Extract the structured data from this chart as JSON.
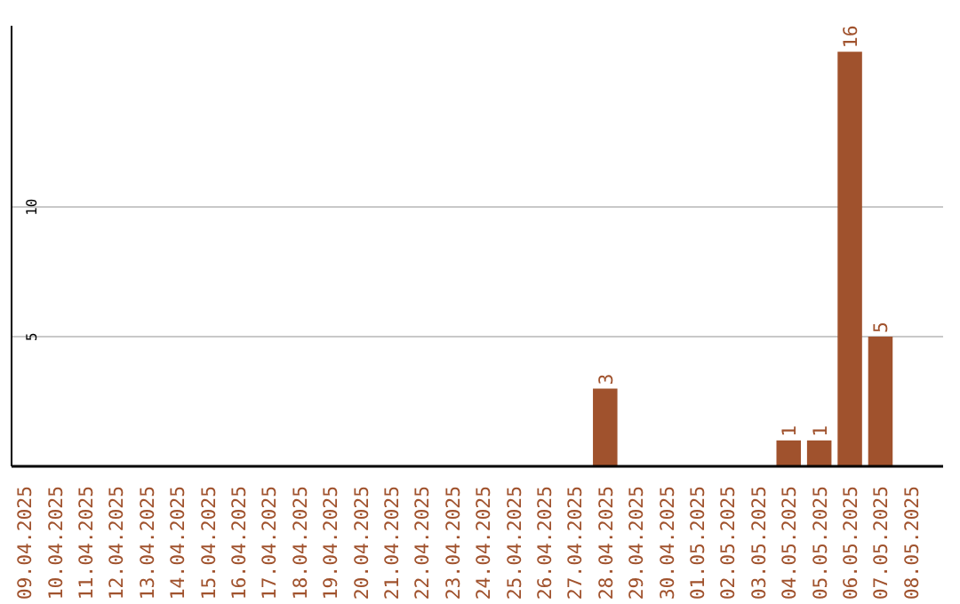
{
  "chart_data": {
    "type": "bar",
    "categories": [
      "09.04.2025",
      "10.04.2025",
      "11.04.2025",
      "12.04.2025",
      "13.04.2025",
      "14.04.2025",
      "15.04.2025",
      "16.04.2025",
      "17.04.2025",
      "18.04.2025",
      "19.04.2025",
      "20.04.2025",
      "21.04.2025",
      "22.04.2025",
      "23.04.2025",
      "24.04.2025",
      "25.04.2025",
      "26.04.2025",
      "27.04.2025",
      "28.04.2025",
      "29.04.2025",
      "30.04.2025",
      "01.05.2025",
      "02.05.2025",
      "03.05.2025",
      "04.05.2025",
      "05.05.2025",
      "06.05.2025",
      "07.05.2025",
      "08.05.2025"
    ],
    "values": [
      0,
      0,
      0,
      0,
      0,
      0,
      0,
      0,
      0,
      0,
      0,
      0,
      0,
      0,
      0,
      0,
      0,
      0,
      0,
      3,
      0,
      0,
      0,
      0,
      0,
      1,
      1,
      16,
      5,
      0
    ],
    "value_labels": [
      null,
      null,
      null,
      null,
      null,
      null,
      null,
      null,
      null,
      null,
      null,
      null,
      null,
      null,
      null,
      null,
      null,
      null,
      null,
      "3",
      null,
      null,
      null,
      null,
      null,
      "1",
      "1",
      "16",
      "5",
      null
    ],
    "color": "#a0522d",
    "ylim": [
      0,
      17
    ],
    "yticks": [
      5,
      10
    ],
    "grid": "y"
  }
}
